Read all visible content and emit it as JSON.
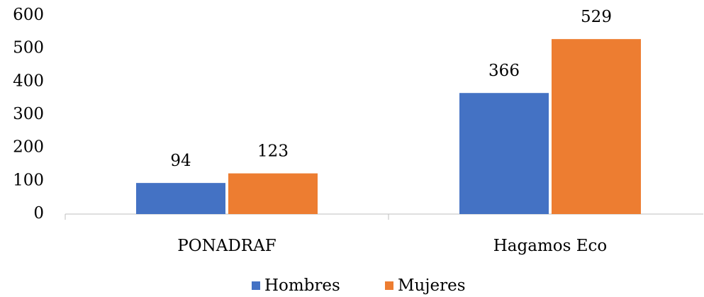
{
  "chart_data": {
    "type": "bar",
    "categories": [
      "PONADRAF",
      "Hagamos Eco"
    ],
    "series": [
      {
        "name": "Hombres",
        "color": "#4472c4",
        "values": [
          94,
          366
        ]
      },
      {
        "name": "Mujeres",
        "color": "#ed7d31",
        "values": [
          123,
          529
        ]
      }
    ],
    "ylim": [
      0,
      600
    ],
    "yticks": [
      0,
      100,
      200,
      300,
      400,
      500,
      600
    ],
    "grid": false,
    "legend": "bottom",
    "data_labels": true
  }
}
